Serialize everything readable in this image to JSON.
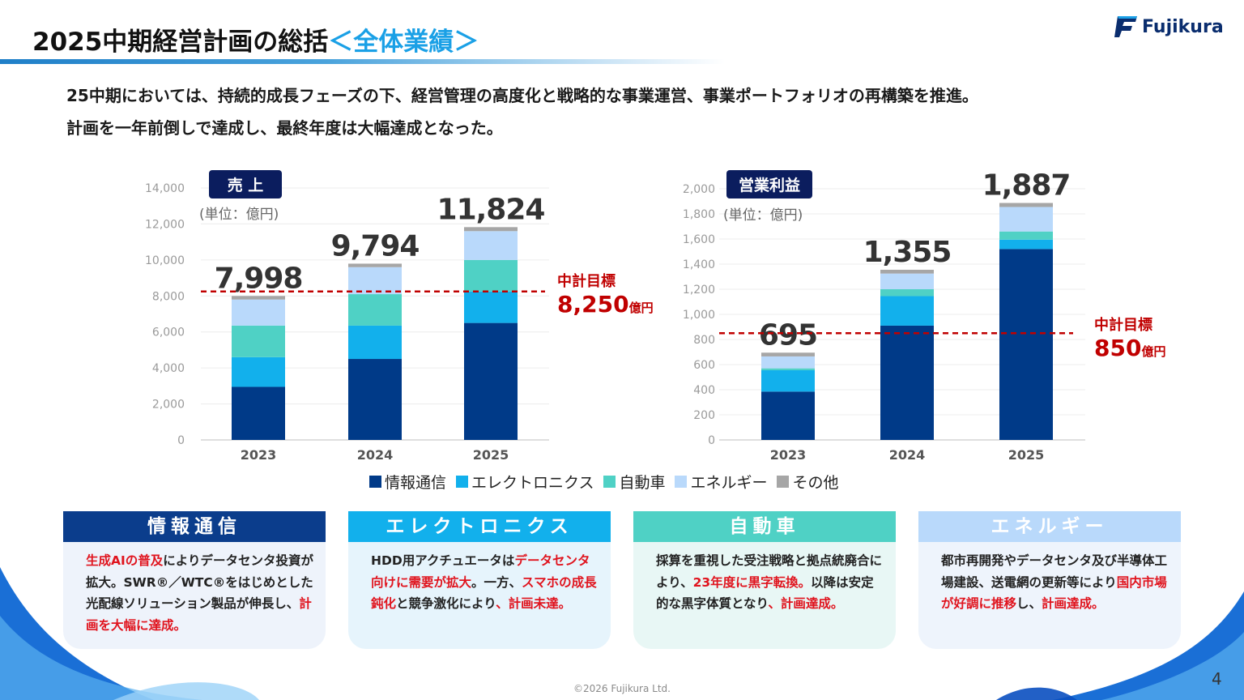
{
  "header": {
    "title_main": "2025中期経営計画の総括",
    "title_accent": "＜全体業績＞",
    "logo_text": "Fujikura"
  },
  "intro": {
    "line1": "25中期においては、持続的成長フェーズの下、経営管理の高度化と戦略的な事業運営、事業ポートフォリオの再構築を推進。",
    "line2": "計画を一年前倒しで達成し、最終年度は大幅達成となった。"
  },
  "colors": {
    "info": "#003a88",
    "electronics": "#12b0ec",
    "auto": "#4fd1c5",
    "energy": "#b9d9fb",
    "other": "#a6a6a6",
    "target": "#c00000",
    "label_bg": "#0b1d5e"
  },
  "chart_data": [
    {
      "type": "bar",
      "stacked": true,
      "label": "売 上",
      "unit": "(単位：億円)",
      "categories": [
        "2023",
        "2024",
        "2025"
      ],
      "series": [
        {
          "name": "情報通信",
          "values": [
            2950,
            4500,
            6500
          ]
        },
        {
          "name": "エレクトロニクス",
          "values": [
            1650,
            1850,
            1750
          ]
        },
        {
          "name": "自動車",
          "values": [
            1750,
            1750,
            1750
          ]
        },
        {
          "name": "エネルギー",
          "values": [
            1450,
            1500,
            1600
          ]
        },
        {
          "name": "その他",
          "values": [
            198,
            194,
            224
          ]
        }
      ],
      "totals": [
        "7,998",
        "9,794",
        "11,824"
      ],
      "ylim": [
        0,
        14000
      ],
      "yticks": [
        "0",
        "2,000",
        "4,000",
        "6,000",
        "8,000",
        "10,000",
        "12,000",
        "14,000"
      ],
      "target": {
        "value": 8250,
        "label": "中計目標",
        "amount": "8,250",
        "unit": "億円"
      }
    },
    {
      "type": "bar",
      "stacked": true,
      "label": "営業利益",
      "unit": "(単位：億円)",
      "categories": [
        "2023",
        "2024",
        "2025"
      ],
      "series": [
        {
          "name": "情報通信",
          "values": [
            385,
            910,
            1520
          ]
        },
        {
          "name": "エレクトロニクス",
          "values": [
            170,
            235,
            75
          ]
        },
        {
          "name": "自動車",
          "values": [
            15,
            55,
            65
          ]
        },
        {
          "name": "エネルギー",
          "values": [
            95,
            125,
            195
          ]
        },
        {
          "name": "その他",
          "values": [
            30,
            30,
            32
          ]
        }
      ],
      "totals": [
        "695",
        "1,355",
        "1,887"
      ],
      "ylim": [
        0,
        2000
      ],
      "yticks": [
        "0",
        "200",
        "400",
        "600",
        "800",
        "1,000",
        "1,200",
        "1,400",
        "1,600",
        "1,800",
        "2,000"
      ],
      "target": {
        "value": 850,
        "label": "中計目標",
        "amount": "850",
        "unit": "億円"
      }
    }
  ],
  "legend": [
    "情報通信",
    "エレクトロニクス",
    "自動車",
    "エネルギー",
    "その他"
  ],
  "cards": [
    {
      "title": "情報通信",
      "segments": [
        {
          "text": "生成AIの普及",
          "red": true
        },
        {
          "text": "によりデータセンタ投資が拡大。SWR®／WTC®をはじめとした光配線ソリューション製品が伸長し、",
          "red": false
        },
        {
          "text": "計画を大幅に達成。",
          "red": true
        }
      ]
    },
    {
      "title": "エレクトロニクス",
      "segments": [
        {
          "text": "HDD用アクチュエータは",
          "red": false
        },
        {
          "text": "データセンタ向けに需要が拡大",
          "red": true
        },
        {
          "text": "。一方、",
          "red": false
        },
        {
          "text": "スマホの成長鈍化",
          "red": true
        },
        {
          "text": "と競争激化により",
          "red": false
        },
        {
          "text": "、計画未達。",
          "red": true
        }
      ]
    },
    {
      "title": "自動車",
      "segments": [
        {
          "text": "採算を重視した受注戦略と拠点統廃合により、",
          "red": false
        },
        {
          "text": "23年度に黒字転換。",
          "red": true
        },
        {
          "text": "以降は安定的な黒字体質となり",
          "red": false
        },
        {
          "text": "、計画達成。",
          "red": true
        }
      ]
    },
    {
      "title": "エネルギー",
      "segments": [
        {
          "text": "都市再開発やデータセンタ及び半導体工場建設、送電網の更新等により",
          "red": false
        },
        {
          "text": "国内市場が好調に推移",
          "red": true
        },
        {
          "text": "し、",
          "red": false
        },
        {
          "text": "計画達成。",
          "red": true
        }
      ]
    }
  ],
  "footer": {
    "copyright": "©2026 Fujikura Ltd.",
    "page": "4"
  }
}
